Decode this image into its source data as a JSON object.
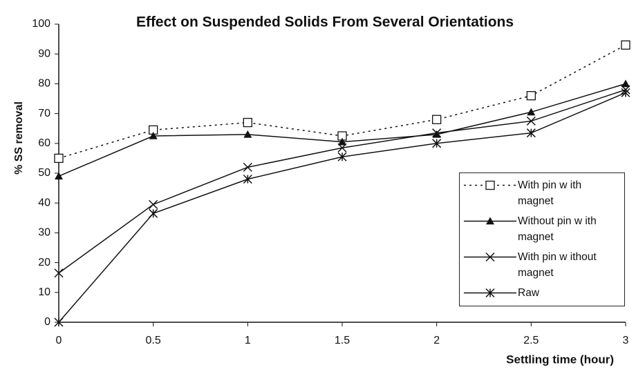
{
  "chart_data": {
    "type": "line",
    "title": "Effect on Suspended Solids From Several Orientations",
    "xlabel": "Settling time (hour)",
    "ylabel": "% SS removal",
    "x": [
      0,
      0.5,
      1,
      1.5,
      2,
      2.5,
      3
    ],
    "xlim": [
      0,
      3
    ],
    "xticks": [
      0,
      0.5,
      1,
      1.5,
      2,
      2.5,
      3
    ],
    "ylim": [
      0,
      100
    ],
    "yticks": [
      0,
      10,
      20,
      30,
      40,
      50,
      60,
      70,
      80,
      90,
      100
    ],
    "grid": false,
    "legend": "lower right",
    "series": [
      {
        "name": "With pin w ith magnet",
        "color": "#111111",
        "marker": "square",
        "line_style": "dotted",
        "values": [
          55,
          64.5,
          67,
          62.5,
          68,
          76,
          93
        ]
      },
      {
        "name": "Without pin w ith magnet",
        "color": "#111111",
        "marker": "triangle",
        "line_style": "solid",
        "values": [
          49,
          62.5,
          63,
          60.5,
          63,
          70.5,
          80
        ]
      },
      {
        "name": "With pin w ithout magnet",
        "color": "#111111",
        "marker": "x",
        "line_style": "solid",
        "values": [
          16.5,
          39.5,
          52,
          58.5,
          63.5,
          67.5,
          78
        ]
      },
      {
        "name": "Raw",
        "color": "#111111",
        "marker": "star",
        "line_style": "solid",
        "values": [
          0,
          36.5,
          48,
          55.5,
          60,
          63.5,
          77
        ]
      }
    ]
  }
}
